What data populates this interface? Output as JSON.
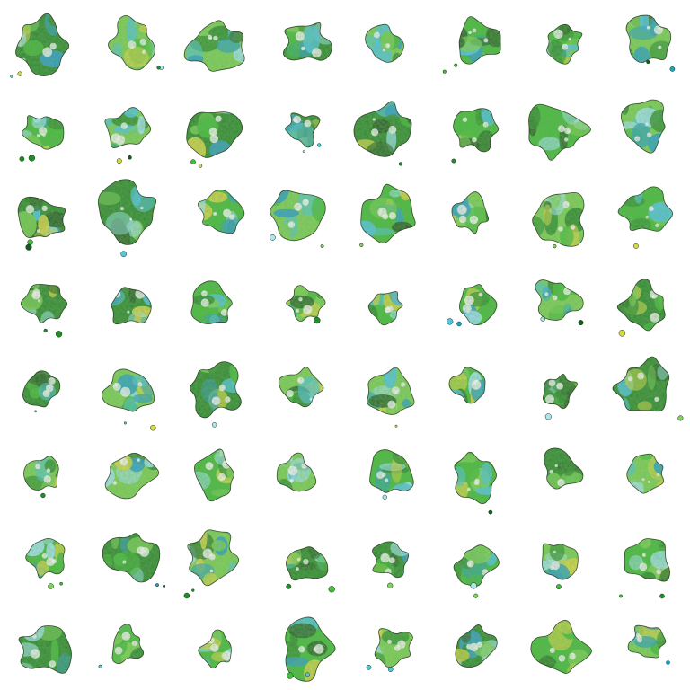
{
  "grid": {
    "rows": 8,
    "cols": 8,
    "background": "#ffffff",
    "palette": [
      "#1f8f2a",
      "#3fbf3a",
      "#7fd35a",
      "#1aa3c8",
      "#4fc9e0",
      "#d6d94a",
      "#0f5e1c",
      "#a8e6f0"
    ],
    "outline_color": "#1a2a10"
  }
}
